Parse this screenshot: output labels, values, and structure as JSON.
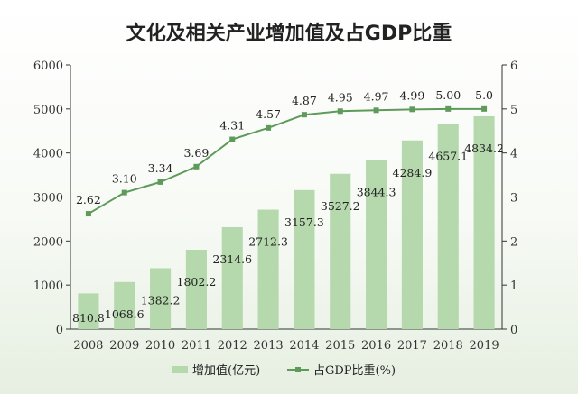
{
  "chart_data": {
    "type": "bar+line",
    "title": "文化及相关产业增加值及占GDP比重",
    "categories": [
      "2008",
      "2009",
      "2010",
      "2011",
      "2012",
      "2013",
      "2014",
      "2015",
      "2016",
      "2017",
      "2018",
      "2019"
    ],
    "series": [
      {
        "name": "增加值(亿元)",
        "type": "bar",
        "axis": "left",
        "values": [
          810.8,
          1068.6,
          1382.2,
          1802.2,
          2314.6,
          2712.3,
          3157.3,
          3527.2,
          3844.3,
          4284.9,
          4657.1,
          4834.2
        ],
        "labels": [
          "810.8",
          "1068.6",
          "1382.2",
          "1802.2",
          "2314.6",
          "2712.3",
          "3157.3",
          "3527.2",
          "3844.3",
          "4284.9",
          "4657.1",
          "4834.2"
        ],
        "color": "#b5d8ad"
      },
      {
        "name": "占GDP比重(%)",
        "type": "line",
        "axis": "right",
        "values": [
          2.62,
          3.1,
          3.34,
          3.69,
          4.31,
          4.57,
          4.87,
          4.95,
          4.97,
          4.99,
          5.0,
          5.0
        ],
        "labels": [
          "2.62",
          "3.10",
          "3.34",
          "3.69",
          "4.31",
          "4.57",
          "4.87",
          "4.95",
          "4.97",
          "4.99",
          "5.00",
          "5.0"
        ],
        "color": "#5e9a5a"
      }
    ],
    "y_left": {
      "min": 0,
      "max": 6000,
      "ticks": [
        "0",
        "1000",
        "2000",
        "3000",
        "4000",
        "5000",
        "6000"
      ]
    },
    "y_right": {
      "min": 0,
      "max": 6,
      "ticks": [
        "0",
        "1",
        "2",
        "3",
        "4",
        "5",
        "6"
      ]
    },
    "legend": {
      "position": "bottom",
      "bar_label": "增加值(亿元)",
      "line_label": "占GDP比重(%)"
    }
  }
}
